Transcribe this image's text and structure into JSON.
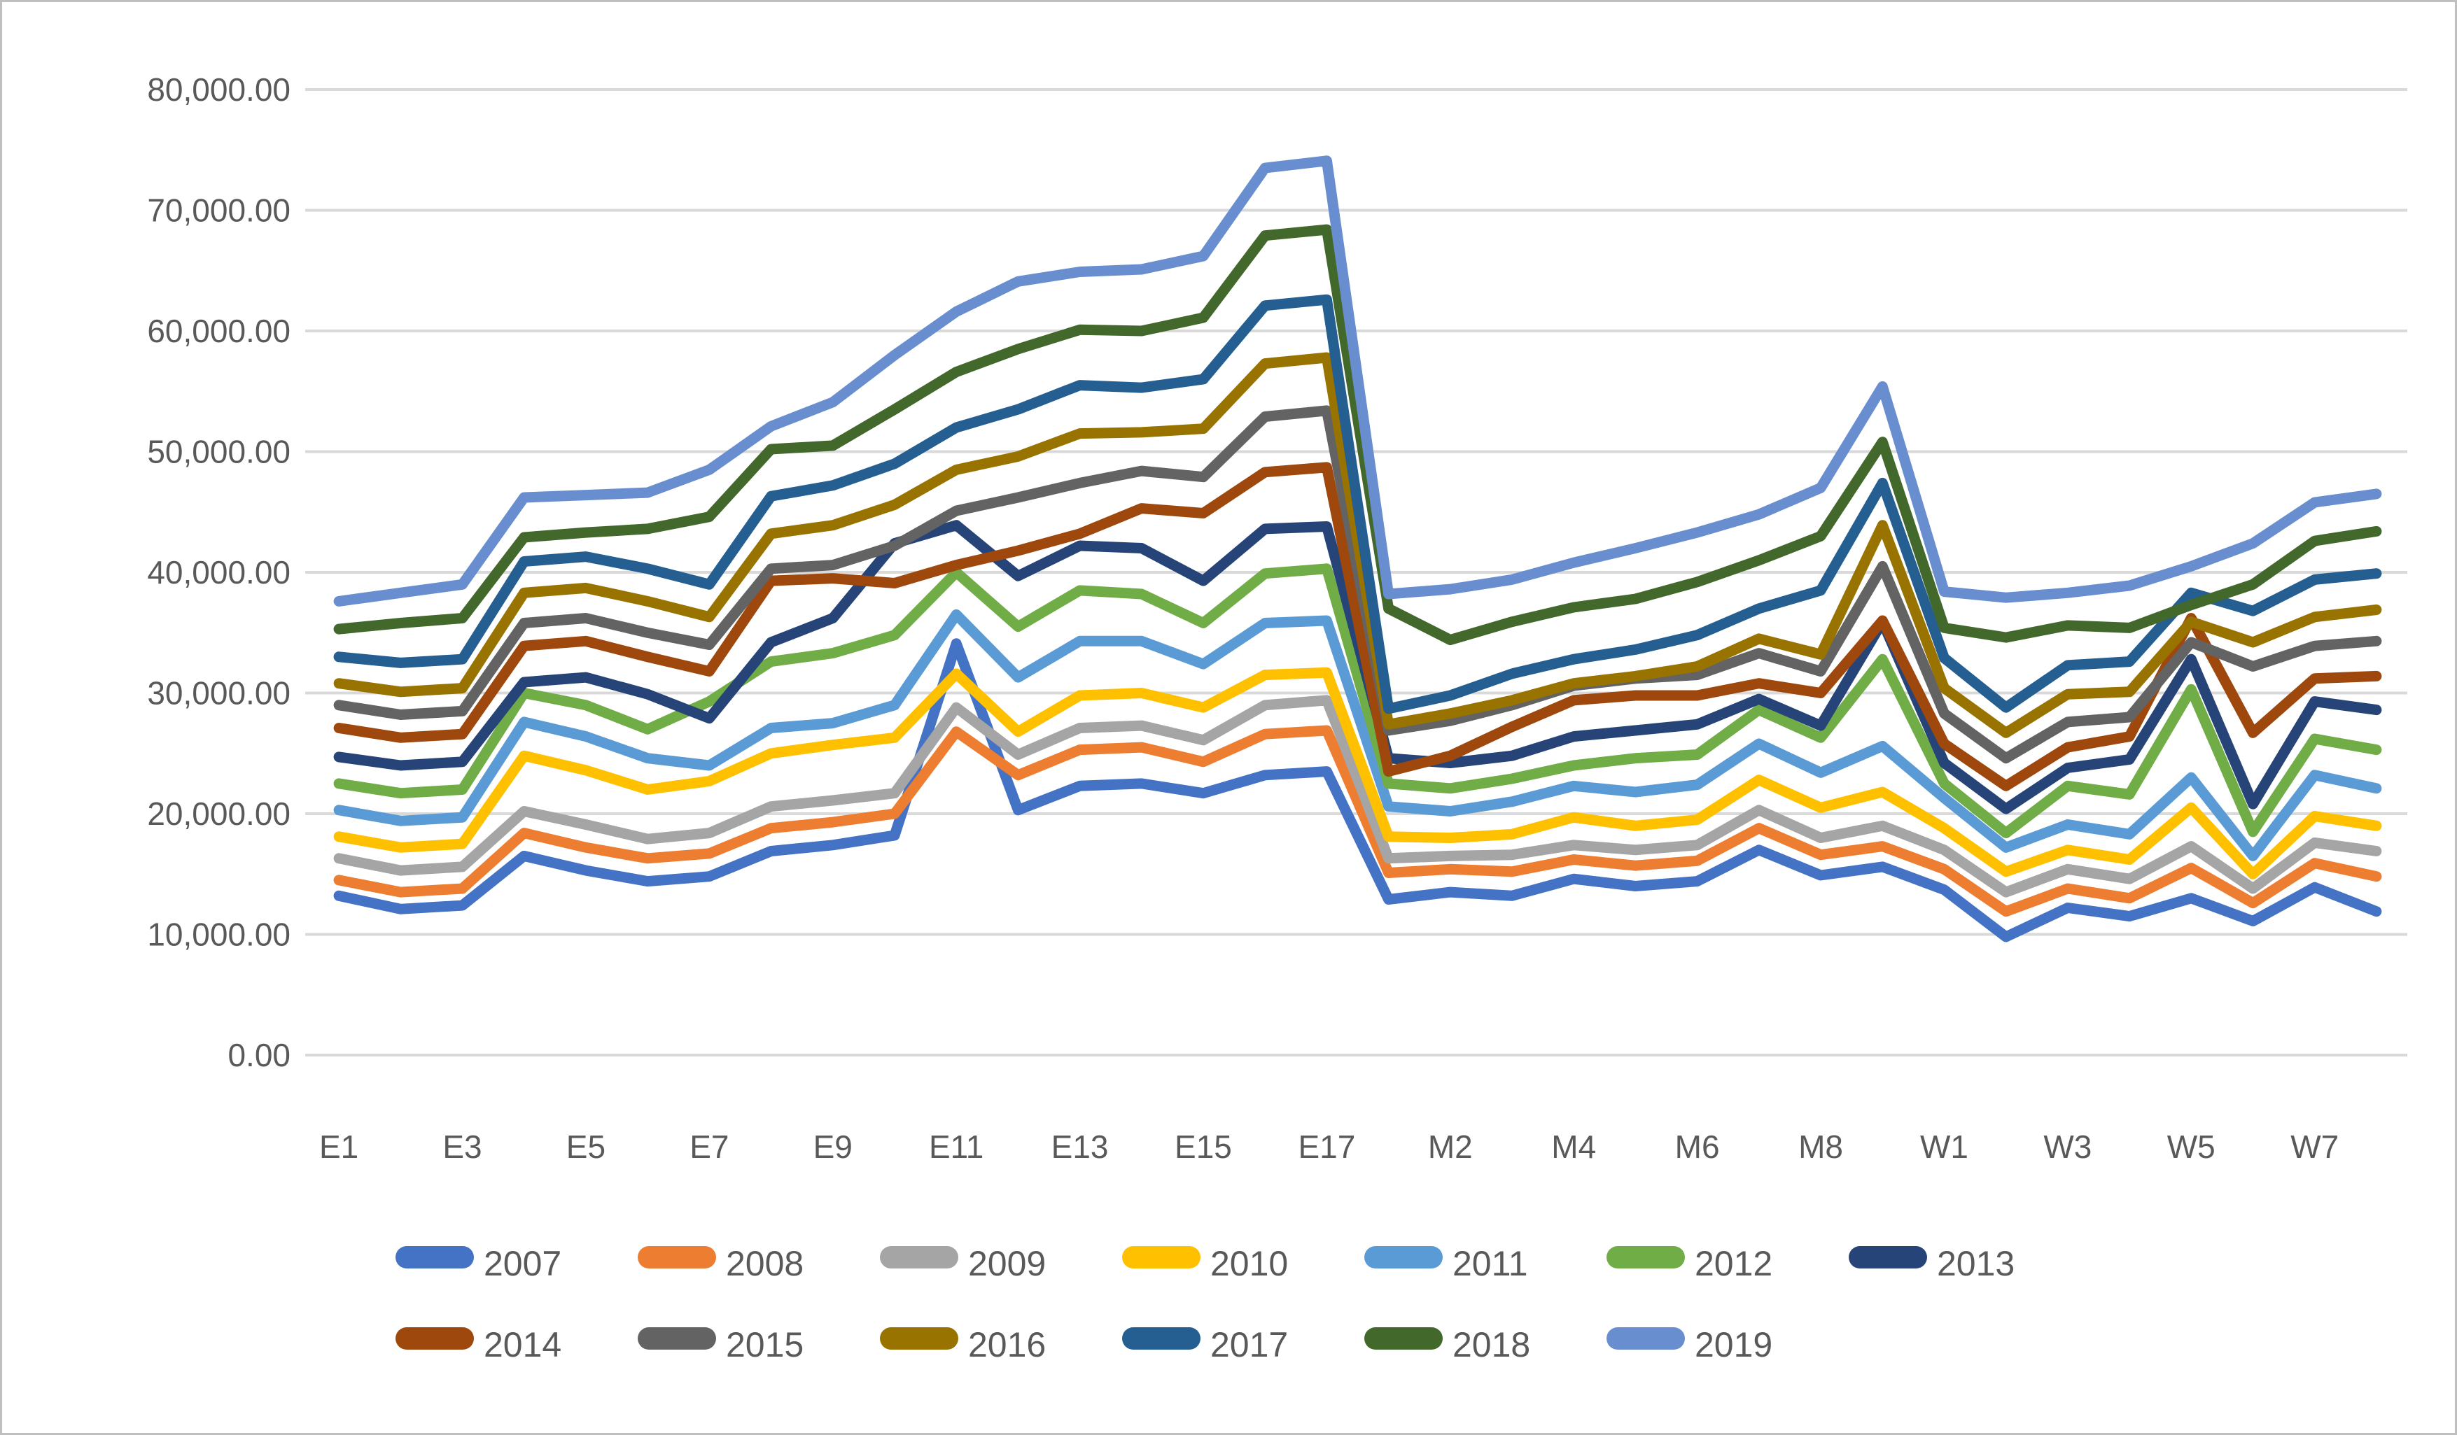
{
  "figure": {
    "background": "#ffffff",
    "border_color": "#bfbfbf",
    "text_color": "#595959",
    "gridline_color": "#d9d9d9"
  },
  "chart_data": {
    "type": "line",
    "title": "",
    "xlabel": "",
    "ylabel": "",
    "ylim": [
      0,
      80000
    ],
    "y_step": 10000,
    "grid": true,
    "legend_position": "bottom",
    "y_tick_labels": [
      "0.00",
      "10,000.00",
      "20,000.00",
      "30,000.00",
      "40,000.00",
      "50,000.00",
      "60,000.00",
      "70,000.00",
      "80,000.00"
    ],
    "x_visible_tick_labels": [
      "E1",
      "E3",
      "E5",
      "E7",
      "E9",
      "E11",
      "E13",
      "E15",
      "E17",
      "M2",
      "M4",
      "M6",
      "M8",
      "W1",
      "W3",
      "W5",
      "W7"
    ],
    "x_label_interval": 2,
    "categories": [
      "E1",
      "E2",
      "E3",
      "E4",
      "E5",
      "E6",
      "E7",
      "E8",
      "E9",
      "E10",
      "E11",
      "E12",
      "E13",
      "E14",
      "E15",
      "E16",
      "E17",
      "M1",
      "M2",
      "M3",
      "M4",
      "M5",
      "M6",
      "M7",
      "M8",
      "M9",
      "W1",
      "W2",
      "W3",
      "W4",
      "W5",
      "W6",
      "W7",
      "W8"
    ],
    "series": [
      {
        "name": "2007",
        "color": "#4472C4",
        "values": [
          13200,
          12100,
          12400,
          16500,
          15300,
          14400,
          14800,
          16900,
          17400,
          18200,
          34100,
          20300,
          22300,
          22500,
          21700,
          23200,
          23500,
          12900,
          13500,
          13200,
          14600,
          14000,
          14400,
          17000,
          14900,
          15600,
          13700,
          9800,
          12200,
          11500,
          13000,
          11100,
          13900,
          11900
        ]
      },
      {
        "name": "2008",
        "color": "#ED7D31",
        "values": [
          14500,
          13500,
          13800,
          18400,
          17200,
          16300,
          16700,
          18800,
          19300,
          20000,
          26800,
          23200,
          25300,
          25500,
          24300,
          26600,
          26900,
          15100,
          15400,
          15200,
          16200,
          15700,
          16100,
          18800,
          16600,
          17300,
          15400,
          11900,
          13800,
          13000,
          15500,
          12600,
          15900,
          14800
        ]
      },
      {
        "name": "2009",
        "color": "#A5A5A5",
        "values": [
          16300,
          15300,
          15600,
          20200,
          19100,
          17900,
          18400,
          20600,
          21100,
          21700,
          28800,
          24900,
          27100,
          27300,
          26100,
          29000,
          29400,
          16300,
          16500,
          16600,
          17400,
          17000,
          17400,
          20300,
          18000,
          19000,
          17000,
          13500,
          15400,
          14600,
          17300,
          13800,
          17600,
          16900
        ]
      },
      {
        "name": "2010",
        "color": "#FFC000",
        "values": [
          18100,
          17200,
          17500,
          24800,
          23600,
          22000,
          22700,
          25000,
          25700,
          26300,
          31600,
          26800,
          29800,
          30000,
          28800,
          31500,
          31700,
          18100,
          18000,
          18300,
          19700,
          19000,
          19500,
          22800,
          20500,
          21800,
          18800,
          15200,
          17000,
          16200,
          20500,
          15000,
          19800,
          19000
        ]
      },
      {
        "name": "2011",
        "color": "#5B9BD5",
        "values": [
          20300,
          19400,
          19700,
          27600,
          26400,
          24600,
          24000,
          27100,
          27500,
          29000,
          36500,
          31300,
          34300,
          34300,
          32400,
          35800,
          36000,
          20600,
          20200,
          21000,
          22300,
          21800,
          22400,
          25800,
          23400,
          25600,
          21300,
          17200,
          19100,
          18300,
          23000,
          16500,
          23200,
          22100
        ]
      },
      {
        "name": "2012",
        "color": "#70AD47",
        "values": [
          22500,
          21700,
          22000,
          30000,
          29000,
          27000,
          29300,
          32600,
          33300,
          34800,
          40000,
          35500,
          38500,
          38200,
          35800,
          39900,
          40300,
          22500,
          22100,
          22900,
          24000,
          24600,
          24900,
          28600,
          26300,
          32800,
          22500,
          18400,
          22300,
          21600,
          30300,
          18500,
          26200,
          25300
        ]
      },
      {
        "name": "2013",
        "color": "#264478",
        "values": [
          24700,
          24000,
          24300,
          30900,
          31300,
          29900,
          27900,
          34200,
          36200,
          42400,
          43900,
          39700,
          42200,
          42000,
          39300,
          43600,
          43800,
          24600,
          24200,
          24800,
          26400,
          26900,
          27400,
          29500,
          27300,
          35900,
          24200,
          20400,
          23800,
          24500,
          32800,
          20800,
          29300,
          28600
        ]
      },
      {
        "name": "2014",
        "color": "#9E480E",
        "values": [
          27100,
          26300,
          26600,
          33900,
          34300,
          33000,
          31800,
          39300,
          39500,
          39100,
          40600,
          41800,
          43200,
          45300,
          44900,
          48300,
          48700,
          23500,
          24800,
          27200,
          29400,
          29800,
          29800,
          30800,
          30000,
          36000,
          25800,
          22300,
          25500,
          26400,
          36200,
          26700,
          31200,
          31400
        ]
      },
      {
        "name": "2015",
        "color": "#636363",
        "values": [
          29000,
          28200,
          28500,
          35800,
          36200,
          35000,
          34000,
          40300,
          40600,
          42200,
          45100,
          46200,
          47400,
          48400,
          47900,
          52900,
          53400,
          26900,
          27700,
          29000,
          30600,
          31200,
          31500,
          33300,
          31800,
          40500,
          28300,
          24600,
          27600,
          28000,
          34200,
          32200,
          33900,
          34300
        ]
      },
      {
        "name": "2016",
        "color": "#997300",
        "values": [
          30800,
          30100,
          30400,
          38300,
          38700,
          37600,
          36300,
          43200,
          43900,
          45600,
          48500,
          49600,
          51500,
          51600,
          51900,
          57300,
          57800,
          27400,
          28300,
          29400,
          30800,
          31400,
          32200,
          34500,
          33200,
          43900,
          30400,
          26700,
          29900,
          30100,
          35900,
          34200,
          36300,
          36900
        ]
      },
      {
        "name": "2017",
        "color": "#255E91",
        "values": [
          33000,
          32500,
          32800,
          40900,
          41300,
          40300,
          39000,
          46300,
          47200,
          49000,
          52000,
          53500,
          55500,
          55300,
          56000,
          62100,
          62600,
          28700,
          29800,
          31600,
          32800,
          33600,
          34800,
          37000,
          38500,
          47400,
          32900,
          28800,
          32300,
          32600,
          38300,
          36800,
          39400,
          39900
        ]
      },
      {
        "name": "2018",
        "color": "#43682B",
        "values": [
          35300,
          35800,
          36200,
          42900,
          43300,
          43600,
          44600,
          50200,
          50500,
          53500,
          56600,
          58500,
          60100,
          60000,
          61100,
          67900,
          68400,
          37000,
          34400,
          35900,
          37100,
          37800,
          39200,
          41000,
          43000,
          50800,
          35400,
          34600,
          35600,
          35400,
          37300,
          39000,
          42600,
          43400
        ]
      },
      {
        "name": "2019",
        "color": "#698ED0",
        "values": [
          37600,
          38300,
          39000,
          46200,
          46400,
          46600,
          48500,
          52100,
          54100,
          58000,
          61600,
          64100,
          64900,
          65100,
          66200,
          73500,
          74100,
          38200,
          38600,
          39400,
          40800,
          42000,
          43300,
          44800,
          47000,
          55400,
          38400,
          37900,
          38300,
          38900,
          40500,
          42400,
          45800,
          46500
        ]
      }
    ]
  },
  "legend": {
    "rows": [
      [
        "2007",
        "2008",
        "2009",
        "2010",
        "2011",
        "2012",
        "2013"
      ],
      [
        "2014",
        "2015",
        "2016",
        "2017",
        "2018",
        "2019"
      ]
    ]
  }
}
